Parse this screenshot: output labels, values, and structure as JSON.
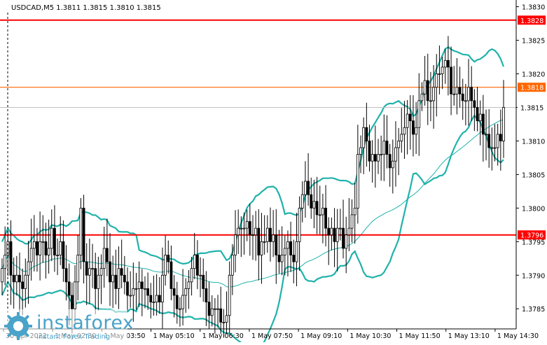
{
  "chart_data": {
    "type": "candlestick",
    "symbol_header": "USDCAD,M5  1.3811 1.3815 1.3810 1.3815",
    "ylim": [
      1.3782,
      1.3831
    ],
    "y_ticks": [
      "1.3830",
      "1.3825",
      "1.3820",
      "1.3815",
      "1.3810",
      "1.3805",
      "1.3800",
      "1.3795",
      "1.3790",
      "1.3785"
    ],
    "x_tick_labels": [
      "30 Apr 2022",
      "1 May 02:30",
      "1 May 03:50",
      "1 May 05:10",
      "1 May 06:30",
      "1 May 07:50",
      "1 May 09:10",
      "1 May 10:30",
      "1 May 11:50",
      "1 May 13:10",
      "1 May 14:30"
    ],
    "horizontal_levels": [
      {
        "value": 1.3828,
        "label": "1.3828",
        "color": "#ff0000"
      },
      {
        "value": 1.3818,
        "label": "1.3818",
        "color": "#ff6600"
      },
      {
        "value": 1.3796,
        "label": "1.3796",
        "color": "#ff0000"
      }
    ],
    "current_price": {
      "value": 1.3815,
      "label": "1.3815"
    },
    "colors": {
      "candles": "#000000",
      "bollinger_bands": "#20b2aa",
      "moving_average": "#20b2aa",
      "price_grid": "#c0c0c0"
    },
    "candles_close": [
      1.3791,
      1.3793,
      1.3795,
      1.379,
      1.3789,
      1.379,
      1.3789,
      1.3788,
      1.379,
      1.3792,
      1.3794,
      1.3795,
      1.3793,
      1.3795,
      1.3795,
      1.3793,
      1.3794,
      1.3797,
      1.3793,
      1.3793,
      1.3795,
      1.3791,
      1.3789,
      1.3787,
      1.3785,
      1.3789,
      1.3793,
      1.38,
      1.3792,
      1.379,
      1.3791,
      1.3791,
      1.3788,
      1.379,
      1.3791,
      1.3794,
      1.3792,
      1.3789,
      1.379,
      1.3788,
      1.3791,
      1.379,
      1.3789,
      1.3787,
      1.3787,
      1.3788,
      1.3788,
      1.3789,
      1.3788,
      1.3788,
      1.3787,
      1.3786,
      1.3786,
      1.3787,
      1.3786,
      1.379,
      1.3793,
      1.3792,
      1.3788,
      1.3787,
      1.3785,
      1.3785,
      1.3787,
      1.3788,
      1.3789,
      1.3791,
      1.3793,
      1.379,
      1.379,
      1.3788,
      1.3786,
      1.3784,
      1.3785,
      1.3785,
      1.3785,
      1.3783,
      1.3783,
      1.3784,
      1.379,
      1.3793,
      1.3796,
      1.3797,
      1.3797,
      1.3797,
      1.3798,
      1.3796,
      1.3796,
      1.3797,
      1.3793,
      1.3795,
      1.3795,
      1.3797,
      1.3795,
      1.3796,
      1.3793,
      1.3792,
      1.3793,
      1.3794,
      1.3795,
      1.3793,
      1.3792,
      1.3795,
      1.38,
      1.3802,
      1.3804,
      1.3802,
      1.38,
      1.3801,
      1.3799,
      1.3799,
      1.38,
      1.3797,
      1.3796,
      1.3797,
      1.3795,
      1.3797,
      1.3797,
      1.3794,
      1.3796,
      1.3797,
      1.3799,
      1.38,
      1.3808,
      1.3809,
      1.3812,
      1.381,
      1.3807,
      1.3808,
      1.3807,
      1.3808,
      1.3808,
      1.381,
      1.3808,
      1.3806,
      1.3807,
      1.3809,
      1.381,
      1.3811,
      1.3812,
      1.3814,
      1.3813,
      1.3811,
      1.3812,
      1.3816,
      1.3817,
      1.3819,
      1.3816,
      1.3816,
      1.3818,
      1.382,
      1.382,
      1.3821,
      1.3822,
      1.3821,
      1.3817,
      1.3817,
      1.3818,
      1.3817,
      1.3816,
      1.3816,
      1.3818,
      1.3816,
      1.3815,
      1.3813,
      1.3814,
      1.3811,
      1.3811,
      1.3809,
      1.3809,
      1.3809,
      1.3811,
      1.381,
      1.3815
    ]
  },
  "branding": {
    "name": "instaforex",
    "tagline": "Instant Forex Trading"
  }
}
